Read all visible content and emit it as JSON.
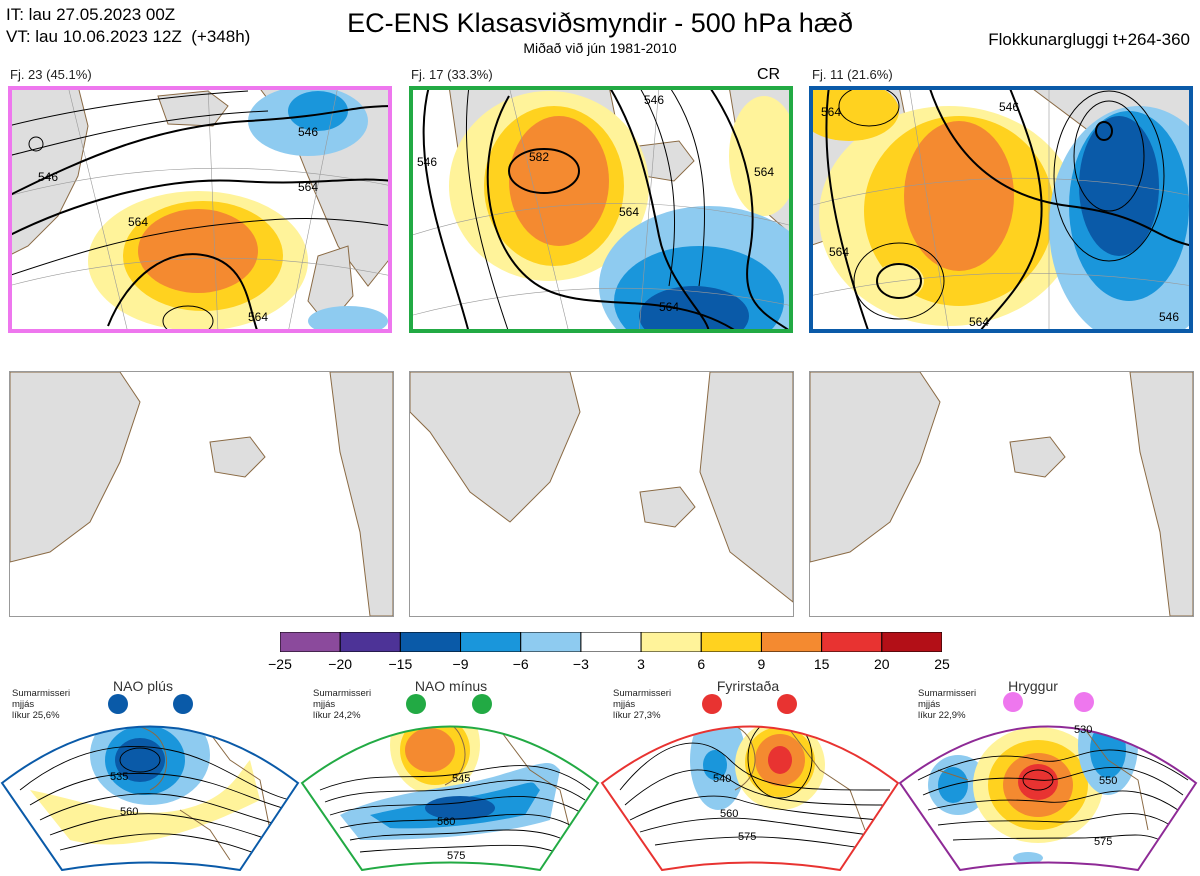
{
  "header": {
    "it_line": "IT: lau 27.05.2023 00Z",
    "vt_line": "VT: lau 10.06.2023 12Z  (+348h)",
    "title": "EC-ENS Klasasviðsmyndir - 500 hPa hæð",
    "subtitle": "Miðað við jún 1981-2010",
    "window": "Flokkunargluggi t+264-360"
  },
  "clusters": [
    {
      "label": "Fj. 23 (45.1%)",
      "border_color": "#ee77ee",
      "contours": [
        "546",
        "564",
        "564",
        "546",
        "564"
      ]
    },
    {
      "label": "Fj. 17 (33.3%)",
      "border_color": "#22aa44",
      "marker": "CR",
      "contours": [
        "546",
        "582",
        "564",
        "564",
        "564",
        "546"
      ]
    },
    {
      "label": "Fj. 11 (21.6%)",
      "border_color": "#0a5aa8",
      "contours": [
        "564",
        "564",
        "546",
        "564",
        "546"
      ]
    }
  ],
  "colorbar": {
    "ticks": [
      "−25",
      "−20",
      "−15",
      "−9",
      "−6",
      "−3",
      "3",
      "6",
      "9",
      "15",
      "20",
      "25"
    ],
    "colors": [
      "#8b4a9c",
      "#4d3397",
      "#0a5aa8",
      "#1a96db",
      "#8ecbf0",
      "#ffffff",
      "#fff39a",
      "#ffd21f",
      "#f48a30",
      "#e83331",
      "#b30f17"
    ]
  },
  "regimes": [
    {
      "name": "NAO plús",
      "season": "Sumarmisseri",
      "line2": "mjjás",
      "likur": "líkur 25,6%",
      "color": "#0a5aa8",
      "contours": [
        "535",
        "560"
      ]
    },
    {
      "name": "NAO mínus",
      "season": "Sumarmisseri",
      "line2": "mjjás",
      "likur": "líkur 24,2%",
      "color": "#22aa44",
      "contours": [
        "545",
        "560",
        "575"
      ]
    },
    {
      "name": "Fyrirstaða",
      "season": "Sumarmisseri",
      "line2": "mjjás",
      "likur": "líkur 27,3%",
      "color": "#e83331",
      "contours": [
        "540",
        "560",
        "575"
      ]
    },
    {
      "name": "Hryggur",
      "season": "Sumarmisseri",
      "line2": "mjjás",
      "likur": "líkur 22,9%",
      "color": "#ee77ee",
      "contours": [
        "530",
        "550",
        "575"
      ]
    }
  ]
}
